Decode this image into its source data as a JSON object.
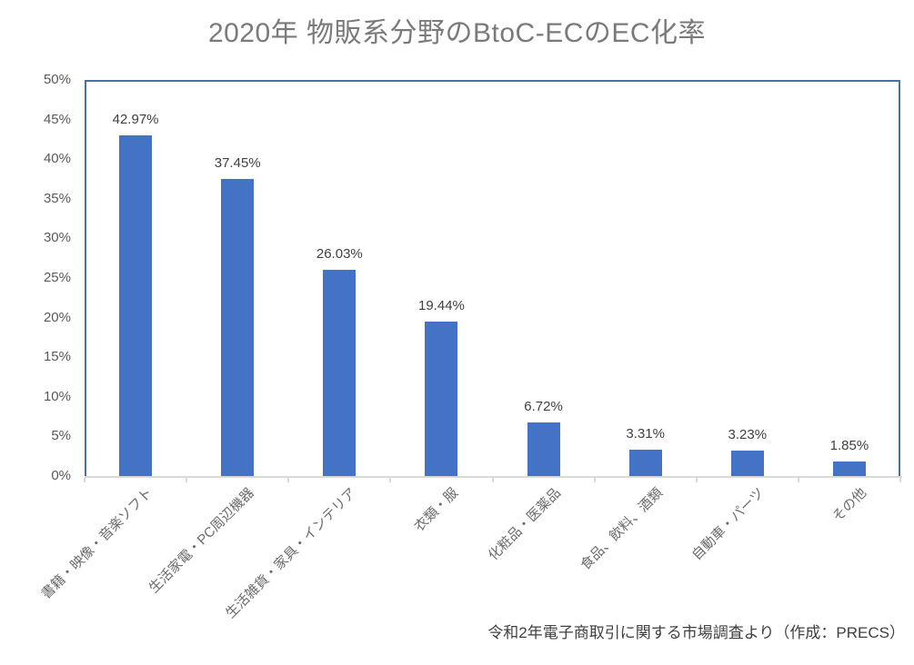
{
  "title": "2020年 物販系分野のBtoC-ECのEC化率",
  "source_note": "令和2年電子商取引に関する市場調査より（作成：PRECS）",
  "chart_data": {
    "type": "bar",
    "title": "2020年 物販系分野のBtoC-ECのEC化率",
    "categories": [
      "書籍・映像・音楽ソフト",
      "生活家電・PC周辺機器",
      "生活雑貨・家具・インテリア",
      "衣類・服",
      "化粧品・医薬品",
      "食品、飲料、酒類",
      "自動車・パーツ",
      "その他"
    ],
    "values": [
      42.97,
      37.45,
      26.03,
      19.44,
      6.72,
      3.31,
      3.23,
      1.85
    ],
    "data_labels": [
      "42.97%",
      "37.45%",
      "26.03%",
      "19.44%",
      "6.72%",
      "3.31%",
      "3.23%",
      "1.85%"
    ],
    "xlabel": "",
    "ylabel": "",
    "ylim": [
      0,
      50
    ],
    "ytick_step": 5,
    "ytick_labels": [
      "0%",
      "5%",
      "10%",
      "15%",
      "20%",
      "25%",
      "30%",
      "35%",
      "40%",
      "45%",
      "50%"
    ],
    "grid": false,
    "legend_position": "none",
    "category_label_rotation_deg": -45,
    "colors": {
      "bar": "#4472C4",
      "plot_border": "#4D6F9E",
      "axis_line": "#D9D9D9",
      "title_text": "#7a7a7a",
      "ytick_text": "#595959",
      "category_text": "#6b6b6b",
      "data_label_text": "#3f3f3f",
      "source_text": "#404040"
    }
  }
}
